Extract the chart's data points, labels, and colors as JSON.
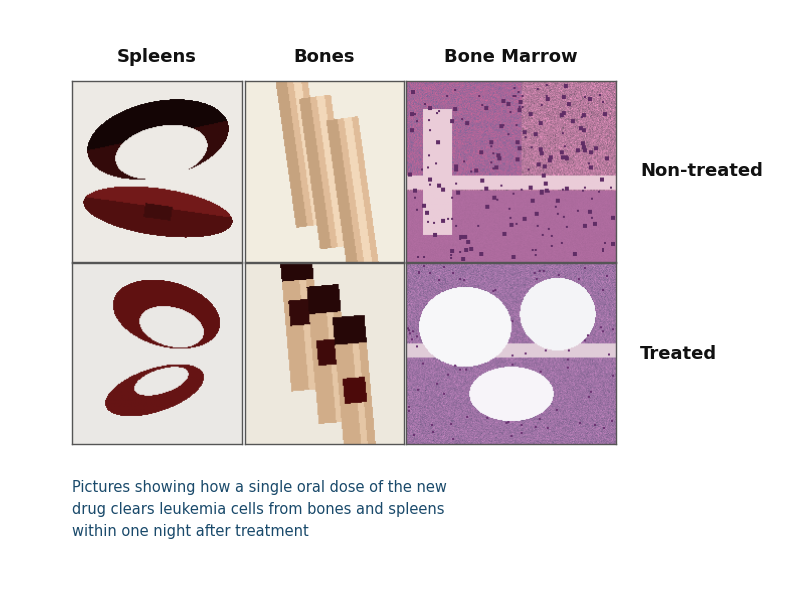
{
  "col_headers": [
    "Spleens",
    "Bones",
    "Bone Marrow"
  ],
  "row_labels": [
    "Non-treated",
    "Treated"
  ],
  "caption": "Pictures showing how a single oral dose of the new\ndrug clears leukemia cells from bones and spleens\nwithin one night after treatment",
  "caption_fontsize": 10.5,
  "caption_color": "#1a4a6b",
  "header_fontsize": 13,
  "row_label_fontsize": 13,
  "background_color": "#ffffff",
  "grid_color": "#555555",
  "header_fontweight": "bold",
  "row_label_fontweight": "bold",
  "fig_width": 8.0,
  "fig_height": 6.0,
  "dpi": 100
}
